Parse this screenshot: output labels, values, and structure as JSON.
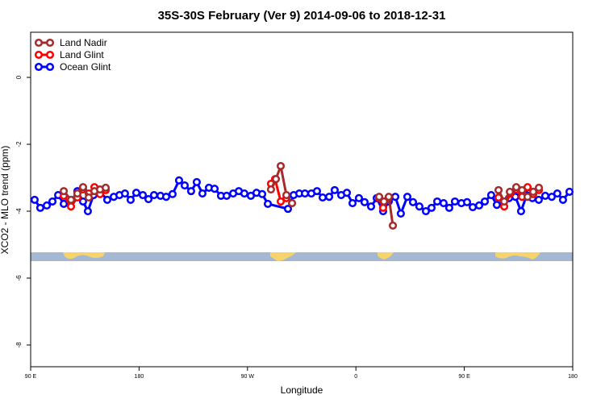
{
  "chart_data": {
    "type": "line",
    "title": "35S-30S February (Ver 9)   2014-09-06 to 2018-12-31",
    "xlabel": "Longitude",
    "ylabel": "XCO2 - MLO trend (ppm)",
    "xlim": [
      90,
      540
    ],
    "ylim": [
      -8.65,
      1.35
    ],
    "xticks": [
      {
        "value": 90,
        "label": "90 E"
      },
      180,
      {
        "value": 270,
        "label": "90 W"
      },
      {
        "value": 360,
        "label": "0"
      },
      {
        "value": 450,
        "label": "90 E"
      },
      {
        "value": 540,
        "label": "180"
      }
    ],
    "yticks": [
      0,
      -2,
      -4,
      -6,
      -8
    ],
    "legend": "top-left",
    "series": [
      {
        "name": "Land Nadir",
        "color": "#a52a2a",
        "x": [
          117.5,
          123.5,
          128.8,
          133.5,
          138.2,
          142.9,
          147.6,
          152.3,
          220,
          289.5,
          293.6,
          297.6,
          302.3,
          307,
          340,
          379.3,
          383.3,
          387.3,
          390.7,
          430,
          478.4,
          483.1,
          487.8,
          493.1,
          497.9,
          502.5,
          507.2,
          511.9
        ],
        "values": [
          -3.4,
          -3.66,
          -3.47,
          -3.28,
          -3.59,
          -3.4,
          -3.35,
          -3.3,
          null,
          -3.35,
          -3.04,
          -2.65,
          -3.52,
          -3.76,
          null,
          -3.57,
          -3.71,
          -3.57,
          -4.43,
          null,
          -3.37,
          -3.71,
          -3.42,
          -3.28,
          -3.37,
          -3.57,
          -3.42,
          -3.3
        ]
      },
      {
        "name": "Land Glint",
        "color": "#ff0000",
        "x": [
          117.5,
          123.5,
          128.8,
          133.5,
          138.2,
          142.9,
          147.6,
          152.3,
          220,
          289.5,
          292.9,
          297.6,
          302.3,
          340,
          379.3,
          382.6,
          386.6,
          430,
          478.4,
          483.1,
          488.4,
          493.1,
          497.9,
          502.5,
          507.2,
          511.9
        ],
        "values": [
          -3.54,
          -3.86,
          -3.59,
          -3.35,
          -3.47,
          -3.28,
          -3.49,
          -3.37,
          null,
          -3.18,
          -3.04,
          -3.71,
          -3.61,
          null,
          -3.61,
          -3.9,
          -3.64,
          null,
          -3.59,
          -3.86,
          -3.47,
          -3.35,
          -3.57,
          -3.28,
          -3.49,
          -3.37
        ]
      },
      {
        "name": "Ocean Glint",
        "color": "#0000ff",
        "x": [
          93.3,
          98,
          103.4,
          108.1,
          112.8,
          117.5,
          123.5,
          128.8,
          133.5,
          137.5,
          142.2,
          147.6,
          153.6,
          159,
          163.7,
          168.3,
          173,
          177.7,
          183.1,
          187.8,
          192.4,
          197.8,
          202.5,
          207.8,
          213.2,
          217.9,
          223.2,
          227.9,
          232.6,
          238,
          242.7,
          248,
          252.7,
          258.1,
          262.8,
          267.4,
          272.8,
          277.5,
          282.2,
          286.9,
          303.6,
          308.3,
          313,
          317.7,
          323,
          327.7,
          332.4,
          337.8,
          342.4,
          347.8,
          352.5,
          357.2,
          362.5,
          367.2,
          372.6,
          377.3,
          382.6,
          387.3,
          392.7,
          397.3,
          402.7,
          407.4,
          412.7,
          418.1,
          422.8,
          427.5,
          432.8,
          437.5,
          442.2,
          447.6,
          452.3,
          457,
          462.3,
          467,
          472.3,
          477,
          482.4,
          487.1,
          492.4,
          497.1,
          501.8,
          506.5,
          511.8,
          517.2,
          522.6,
          527.2,
          531.9,
          537.3
        ],
        "values": [
          -3.66,
          -3.9,
          -3.83,
          -3.71,
          -3.52,
          -3.78,
          -3.71,
          -3.4,
          -3.71,
          -4.0,
          -3.52,
          -3.42,
          -3.66,
          -3.57,
          -3.52,
          -3.47,
          -3.66,
          -3.45,
          -3.52,
          -3.64,
          -3.52,
          -3.54,
          -3.57,
          -3.49,
          -3.08,
          -3.23,
          -3.4,
          -3.13,
          -3.47,
          -3.3,
          -3.33,
          -3.54,
          -3.54,
          -3.47,
          -3.4,
          -3.47,
          -3.54,
          -3.45,
          -3.49,
          -3.78,
          -3.93,
          -3.52,
          -3.47,
          -3.47,
          -3.47,
          -3.4,
          -3.59,
          -3.57,
          -3.37,
          -3.52,
          -3.45,
          -3.76,
          -3.61,
          -3.73,
          -3.86,
          -3.61,
          -4.0,
          -3.71,
          -3.57,
          -4.07,
          -3.57,
          -3.73,
          -3.86,
          -4.0,
          -3.9,
          -3.71,
          -3.76,
          -3.9,
          -3.71,
          -3.76,
          -3.73,
          -3.88,
          -3.83,
          -3.71,
          -3.52,
          -3.81,
          -3.76,
          -3.61,
          -3.57,
          -4.0,
          -3.52,
          -3.61,
          -3.66,
          -3.54,
          -3.57,
          -3.47,
          -3.66,
          -3.42
        ]
      }
    ]
  }
}
